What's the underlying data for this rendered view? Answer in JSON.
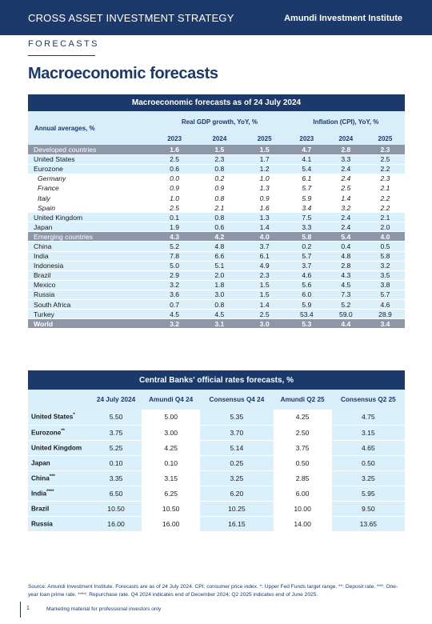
{
  "header": {
    "left_title": "CROSS ASSET INVESTMENT STRATEGY",
    "right_title": "Amundi Investment Institute"
  },
  "section_label": "FORECASTS",
  "page_title": "Macroeconomic forecasts",
  "macro_table": {
    "title": "Macroeconomic forecasts as of 24 July 2024",
    "row_header": "Annual averages, %",
    "group1": "Real GDP growth, YoY, %",
    "group2": "Inflation (CPI), YoY, %",
    "years": [
      "2023",
      "2024",
      "2025",
      "2023",
      "2024",
      "2025"
    ],
    "rows": [
      {
        "name": "Developed countries",
        "style": "group",
        "values": [
          "1.6",
          "1.5",
          "1.5",
          "4.7",
          "2.8",
          "2.3"
        ]
      },
      {
        "name": "United States",
        "style": "light",
        "values": [
          "2.5",
          "2.3",
          "1.7",
          "4.1",
          "3.3",
          "2.5"
        ]
      },
      {
        "name": "Eurozone",
        "style": "light",
        "values": [
          "0.6",
          "0.8",
          "1.2",
          "5.4",
          "2.4",
          "2.2"
        ]
      },
      {
        "name": "Germany",
        "style": "white",
        "values": [
          "0.0",
          "0.2",
          "1.0",
          "6.1",
          "2.4",
          "2.3"
        ]
      },
      {
        "name": "France",
        "style": "white",
        "values": [
          "0.9",
          "0.9",
          "1.3",
          "5.7",
          "2.5",
          "2.1"
        ]
      },
      {
        "name": "Italy",
        "style": "white",
        "values": [
          "1.0",
          "0.8",
          "0.9",
          "5.9",
          "1.4",
          "2.2"
        ]
      },
      {
        "name": "Spain",
        "style": "white",
        "values": [
          "2.5",
          "2.1",
          "1.6",
          "3.4",
          "3.2",
          "2.2"
        ]
      },
      {
        "name": "United Kingdom",
        "style": "light",
        "values": [
          "0.1",
          "0.8",
          "1.3",
          "7.5",
          "2.4",
          "2.1"
        ]
      },
      {
        "name": "Japan",
        "style": "light",
        "values": [
          "1.9",
          "0.6",
          "1.4",
          "3.3",
          "2.4",
          "2.0"
        ]
      },
      {
        "name": "Emerging countries",
        "style": "group",
        "values": [
          "4.3",
          "4.2",
          "4.0",
          "5.8",
          "5.4",
          "4.0"
        ]
      },
      {
        "name": "China",
        "style": "light",
        "values": [
          "5.2",
          "4.8",
          "3.7",
          "0.2",
          "0.4",
          "0.5"
        ]
      },
      {
        "name": "India",
        "style": "light",
        "values": [
          "7.8",
          "6.6",
          "6.1",
          "5.7",
          "4.8",
          "5.8"
        ]
      },
      {
        "name": "Indonesia",
        "style": "light",
        "values": [
          "5.0",
          "5.1",
          "4.9",
          "3.7",
          "2.8",
          "3.2"
        ]
      },
      {
        "name": "Brazil",
        "style": "light",
        "values": [
          "2.9",
          "2.0",
          "2.3",
          "4.6",
          "4.3",
          "3.5"
        ]
      },
      {
        "name": "Mexico",
        "style": "light",
        "values": [
          "3.2",
          "1.8",
          "1.5",
          "5.6",
          "4.5",
          "3.8"
        ]
      },
      {
        "name": "Russia",
        "style": "light",
        "values": [
          "3.6",
          "3.0",
          "1.5",
          "6.0",
          "7.3",
          "5.7"
        ]
      },
      {
        "name": "South Africa",
        "style": "light",
        "values": [
          "0.7",
          "0.8",
          "1.4",
          "5.9",
          "5.2",
          "4.6"
        ]
      },
      {
        "name": "Turkey",
        "style": "light",
        "values": [
          "4.5",
          "4.5",
          "2.5",
          "53.4",
          "59.0",
          "28.9"
        ]
      },
      {
        "name": "World",
        "style": "world",
        "values": [
          "3.2",
          "3.1",
          "3.0",
          "5.3",
          "4.4",
          "3.4"
        ]
      }
    ]
  },
  "rates_table": {
    "title": "Central Banks' official rates forecasts, %",
    "columns": [
      "24 July 2024",
      "Amundi Q4 24",
      "Consensus Q4 24",
      "Amundi Q2 25",
      "Consensus Q2 25"
    ],
    "rows": [
      {
        "name": "United States",
        "mark": "*",
        "values": [
          "5.50",
          "5.00",
          "5.35",
          "4.25",
          "4.75"
        ]
      },
      {
        "name": "Eurozone",
        "mark": "**",
        "values": [
          "3.75",
          "3.00",
          "3.70",
          "2.50",
          "3.15"
        ]
      },
      {
        "name": "United Kingdom",
        "mark": "",
        "values": [
          "5.25",
          "4.25",
          "5.14",
          "3.75",
          "4.65"
        ]
      },
      {
        "name": "Japan",
        "mark": "",
        "values": [
          "0.10",
          "0.10",
          "0.25",
          "0.50",
          "0.50"
        ]
      },
      {
        "name": "China",
        "mark": "***",
        "values": [
          "3.35",
          "3.15",
          "3.25",
          "2.85",
          "3.25"
        ]
      },
      {
        "name": "India",
        "mark": "****",
        "values": [
          "6.50",
          "6.25",
          "6.20",
          "6.00",
          "5.95"
        ]
      },
      {
        "name": "Brazil",
        "mark": "",
        "values": [
          "10.50",
          "10.50",
          "10.25",
          "10.00",
          "9.50"
        ]
      },
      {
        "name": "Russia",
        "mark": "",
        "values": [
          "16.00",
          "16.00",
          "16.15",
          "14.00",
          "13.65"
        ]
      }
    ]
  },
  "source": "Source: Amundi Investment Institute. Forecasts are as of 24 July 2024. CPI: consumer price index. *: Upper Fed Funds target range. **: Deposit rate. ***: One-year loan prime rate. ****: Repurchase rate. Q4 2024 indicates end of December 2024; Q2 2025 indicates end of June 2025.",
  "footer": {
    "page_number": "1",
    "note": "Marketing material for professional investors only"
  }
}
